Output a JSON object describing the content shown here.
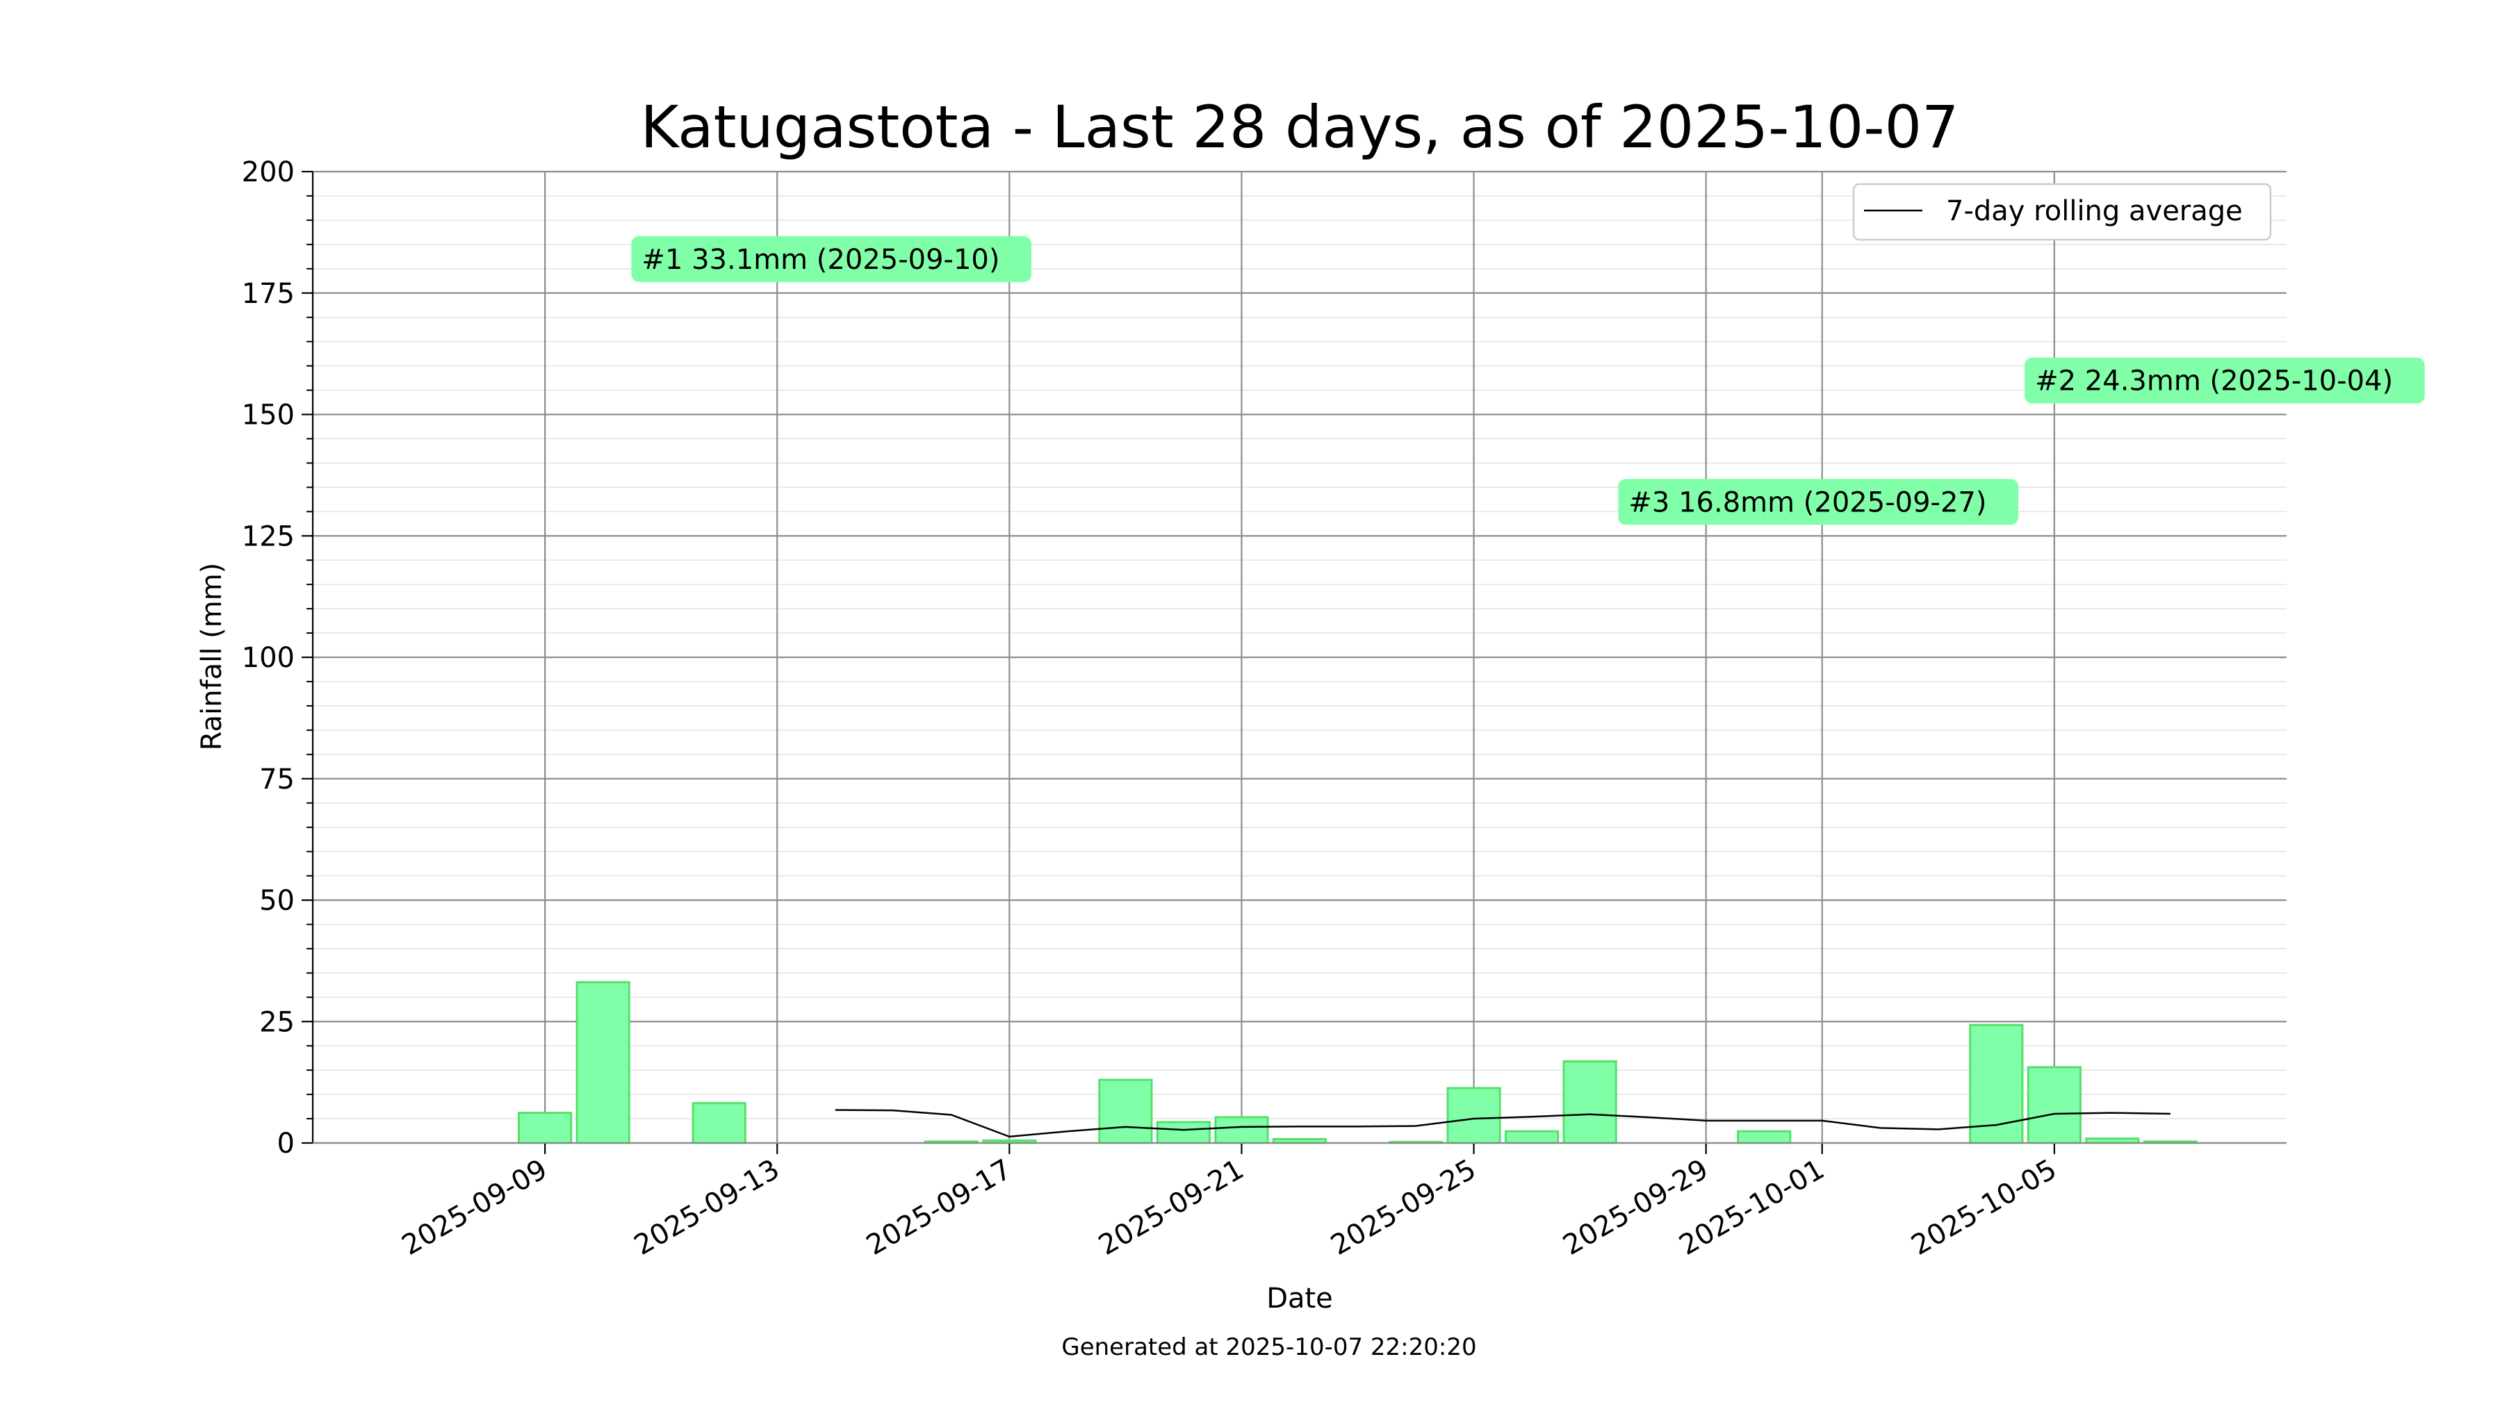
{
  "chart_data": {
    "type": "bar",
    "title": "Katugastota - Last 28 days, as of 2025-10-07",
    "xlabel": "Date",
    "ylabel": "Rainfall (mm)",
    "footer": "Generated at 2025-10-07 22:20:20",
    "ylim": [
      0,
      200
    ],
    "yticks": [
      0,
      25,
      50,
      75,
      100,
      125,
      150,
      175,
      200
    ],
    "xlim": [
      "2025-09-05",
      "2025-10-09"
    ],
    "xticks": [
      "2025-09-09",
      "2025-09-13",
      "2025-09-17",
      "2025-09-21",
      "2025-09-25",
      "2025-09-29",
      "2025-10-01",
      "2025-10-05"
    ],
    "grid": true,
    "legend_position": "top-right",
    "colors": {
      "bar_fill": "#80ffa8",
      "bar_edge": "#55e06a",
      "line": "#000000",
      "label_bg": "#80ffa8",
      "label_text": "#1a1a8c"
    },
    "categories": [
      "2025-09-08",
      "2025-09-09",
      "2025-09-10",
      "2025-09-11",
      "2025-09-12",
      "2025-09-13",
      "2025-09-14",
      "2025-09-15",
      "2025-09-16",
      "2025-09-17",
      "2025-09-18",
      "2025-09-19",
      "2025-09-20",
      "2025-09-21",
      "2025-09-22",
      "2025-09-23",
      "2025-09-24",
      "2025-09-25",
      "2025-09-26",
      "2025-09-27",
      "2025-09-28",
      "2025-09-29",
      "2025-09-30",
      "2025-10-01",
      "2025-10-02",
      "2025-10-03",
      "2025-10-04",
      "2025-10-05",
      "2025-10-06",
      "2025-10-07"
    ],
    "series": [
      {
        "type": "bar",
        "values": [
          0,
          6.2,
          33.1,
          0,
          8.2,
          0,
          0,
          0,
          0.3,
          0.5,
          0,
          13.0,
          4.3,
          5.3,
          0.8,
          0,
          0.2,
          11.3,
          2.4,
          16.8,
          0,
          0,
          2.4,
          0,
          0,
          0,
          24.3,
          15.6,
          0.9,
          0.3
        ]
      },
      {
        "type": "line",
        "name": "7-day rolling average",
        "x": [
          "2025-09-14",
          "2025-09-15",
          "2025-09-16",
          "2025-09-17",
          "2025-09-18",
          "2025-09-19",
          "2025-09-20",
          "2025-09-21",
          "2025-09-22",
          "2025-09-23",
          "2025-09-24",
          "2025-09-25",
          "2025-09-26",
          "2025-09-27",
          "2025-09-28",
          "2025-09-29",
          "2025-09-30",
          "2025-10-01",
          "2025-10-02",
          "2025-10-03",
          "2025-10-04",
          "2025-10-05",
          "2025-10-06",
          "2025-10-07"
        ],
        "values": [
          6.8,
          6.7,
          5.8,
          1.3,
          2.4,
          3.3,
          2.7,
          3.3,
          3.4,
          3.4,
          3.5,
          5.0,
          5.4,
          5.9,
          5.3,
          4.6,
          4.6,
          4.6,
          3.1,
          2.8,
          3.7,
          6.0,
          6.2,
          6.0
        ]
      }
    ],
    "annotations": [
      {
        "text": "#1 33.1mm (2025-09-10)",
        "date": "2025-09-10",
        "rank": 1,
        "y": 182
      },
      {
        "text": "#2 24.3mm (2025-10-04)",
        "date": "2025-10-04",
        "rank": 2,
        "y": 157
      },
      {
        "text": "#3 16.8mm (2025-09-27)",
        "date": "2025-09-27",
        "rank": 3,
        "y": 132
      }
    ]
  }
}
